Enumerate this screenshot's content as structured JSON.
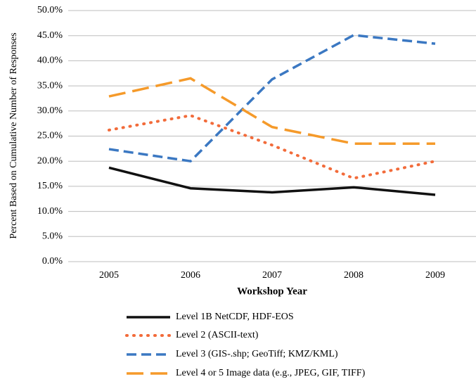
{
  "chart_data": {
    "type": "line",
    "x_label": "Workshop Year",
    "y_label": "Percent Based on Cumulative Number of Responses",
    "categories": [
      "2005",
      "2006",
      "2007",
      "2008",
      "2009"
    ],
    "series": [
      {
        "name": "Level 1B NetCDF, HDF-EOS",
        "color": "#111111",
        "line_style": "solid",
        "values": [
          18.7,
          14.6,
          13.8,
          14.8,
          13.3
        ]
      },
      {
        "name": "Level 2 (ASCII-text)",
        "color": "#f26b3a",
        "line_style": "dotted",
        "values": [
          26.2,
          29.1,
          23.2,
          16.6,
          20.0
        ]
      },
      {
        "name": "Level 3 (GIS-.shp; GeoTiff; KMZ/KML)",
        "color": "#3b78c2",
        "line_style": "dashed",
        "values": [
          22.4,
          20.0,
          36.3,
          45.1,
          43.4
        ]
      },
      {
        "name": "Level 4 or 5 Image data (e.g., JPEG, GIF, TIFF)",
        "color": "#f59a2a",
        "line_style": "long-dashed",
        "values": [
          32.9,
          36.5,
          26.8,
          23.5,
          23.5
        ]
      }
    ],
    "ylim": [
      0,
      50
    ],
    "yticks": [
      {
        "value": 0,
        "label": "0.0%"
      },
      {
        "value": 5,
        "label": "5.0%"
      },
      {
        "value": 10,
        "label": "10.0%"
      },
      {
        "value": 15,
        "label": "15.0%"
      },
      {
        "value": 20,
        "label": "20.0%"
      },
      {
        "value": 25,
        "label": "25.0%"
      },
      {
        "value": 30,
        "label": "30.0%"
      },
      {
        "value": 35,
        "label": "35.0%"
      },
      {
        "value": 40,
        "label": "40.0%"
      },
      {
        "value": 45,
        "label": "45.0%"
      },
      {
        "value": 50,
        "label": "50.0%"
      }
    ],
    "grid": true,
    "legend": "bottom"
  }
}
